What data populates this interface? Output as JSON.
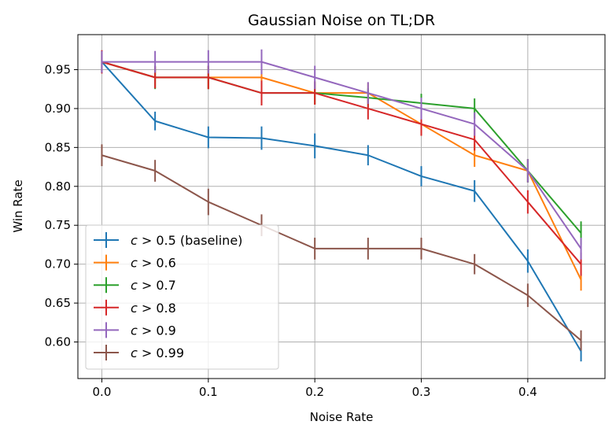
{
  "chart_data": {
    "type": "line",
    "title": "Gaussian Noise on TL;DR",
    "xlabel": "Noise Rate",
    "ylabel": "Win Rate",
    "xlim": [
      -0.0225,
      0.4725
    ],
    "ylim": [
      0.553,
      0.995
    ],
    "xticks": [
      0.0,
      0.1,
      0.2,
      0.3,
      0.4
    ],
    "yticks": [
      0.6,
      0.65,
      0.7,
      0.75,
      0.8,
      0.85,
      0.9,
      0.95
    ],
    "grid": true,
    "legend_position": "lower-left",
    "x": [
      0.0,
      0.05,
      0.1,
      0.15,
      0.2,
      0.25,
      0.3,
      0.35,
      0.4,
      0.45
    ],
    "series": [
      {
        "label": "c > 0.5 (baseline)",
        "label_symbol": "c",
        "label_rest": " > 0.5 (baseline)",
        "color": "#1f77b4",
        "values": [
          0.96,
          0.884,
          0.863,
          0.862,
          0.852,
          0.84,
          0.813,
          0.794,
          0.704,
          0.588
        ],
        "errors": [
          0.014,
          0.012,
          0.014,
          0.015,
          0.016,
          0.013,
          0.013,
          0.014,
          0.015,
          0.013
        ]
      },
      {
        "label": "c > 0.6",
        "label_symbol": "c",
        "label_rest": " > 0.6",
        "color": "#ff7f0e",
        "values": [
          0.96,
          0.94,
          0.94,
          0.94,
          0.92,
          0.92,
          0.88,
          0.84,
          0.82,
          0.68
        ],
        "errors": [
          0.013,
          0.014,
          0.015,
          0.015,
          0.015,
          0.013,
          0.015,
          0.015,
          0.015,
          0.014
        ]
      },
      {
        "label": "c > 0.7",
        "label_symbol": "c",
        "label_rest": " > 0.7",
        "color": "#2ca02c",
        "values": [
          0.96,
          0.94,
          0.94,
          0.92,
          0.92,
          0.914,
          0.907,
          0.9,
          0.82,
          0.74
        ],
        "errors": [
          0.014,
          0.015,
          0.015,
          0.015,
          0.014,
          0.012,
          0.012,
          0.013,
          0.015,
          0.015
        ]
      },
      {
        "label": "c > 0.8",
        "label_symbol": "c",
        "label_rest": " > 0.8",
        "color": "#d62728",
        "values": [
          0.96,
          0.94,
          0.94,
          0.92,
          0.92,
          0.9,
          0.88,
          0.86,
          0.78,
          0.7
        ],
        "errors": [
          0.015,
          0.014,
          0.015,
          0.016,
          0.015,
          0.014,
          0.015,
          0.014,
          0.015,
          0.015
        ]
      },
      {
        "label": "c > 0.9",
        "label_symbol": "c",
        "label_rest": " > 0.9",
        "color": "#9467bd",
        "values": [
          0.96,
          0.96,
          0.96,
          0.96,
          0.94,
          0.92,
          0.9,
          0.88,
          0.82,
          0.72
        ],
        "errors": [
          0.014,
          0.014,
          0.015,
          0.016,
          0.015,
          0.014,
          0.014,
          0.015,
          0.015,
          0.014
        ]
      },
      {
        "label": "c > 0.99",
        "label_symbol": "c",
        "label_rest": " > 0.99",
        "color": "#8c564b",
        "values": [
          0.84,
          0.82,
          0.78,
          0.75,
          0.72,
          0.72,
          0.72,
          0.7,
          0.66,
          0.602
        ],
        "errors": [
          0.014,
          0.014,
          0.017,
          0.014,
          0.014,
          0.014,
          0.014,
          0.013,
          0.015,
          0.013
        ]
      }
    ]
  }
}
